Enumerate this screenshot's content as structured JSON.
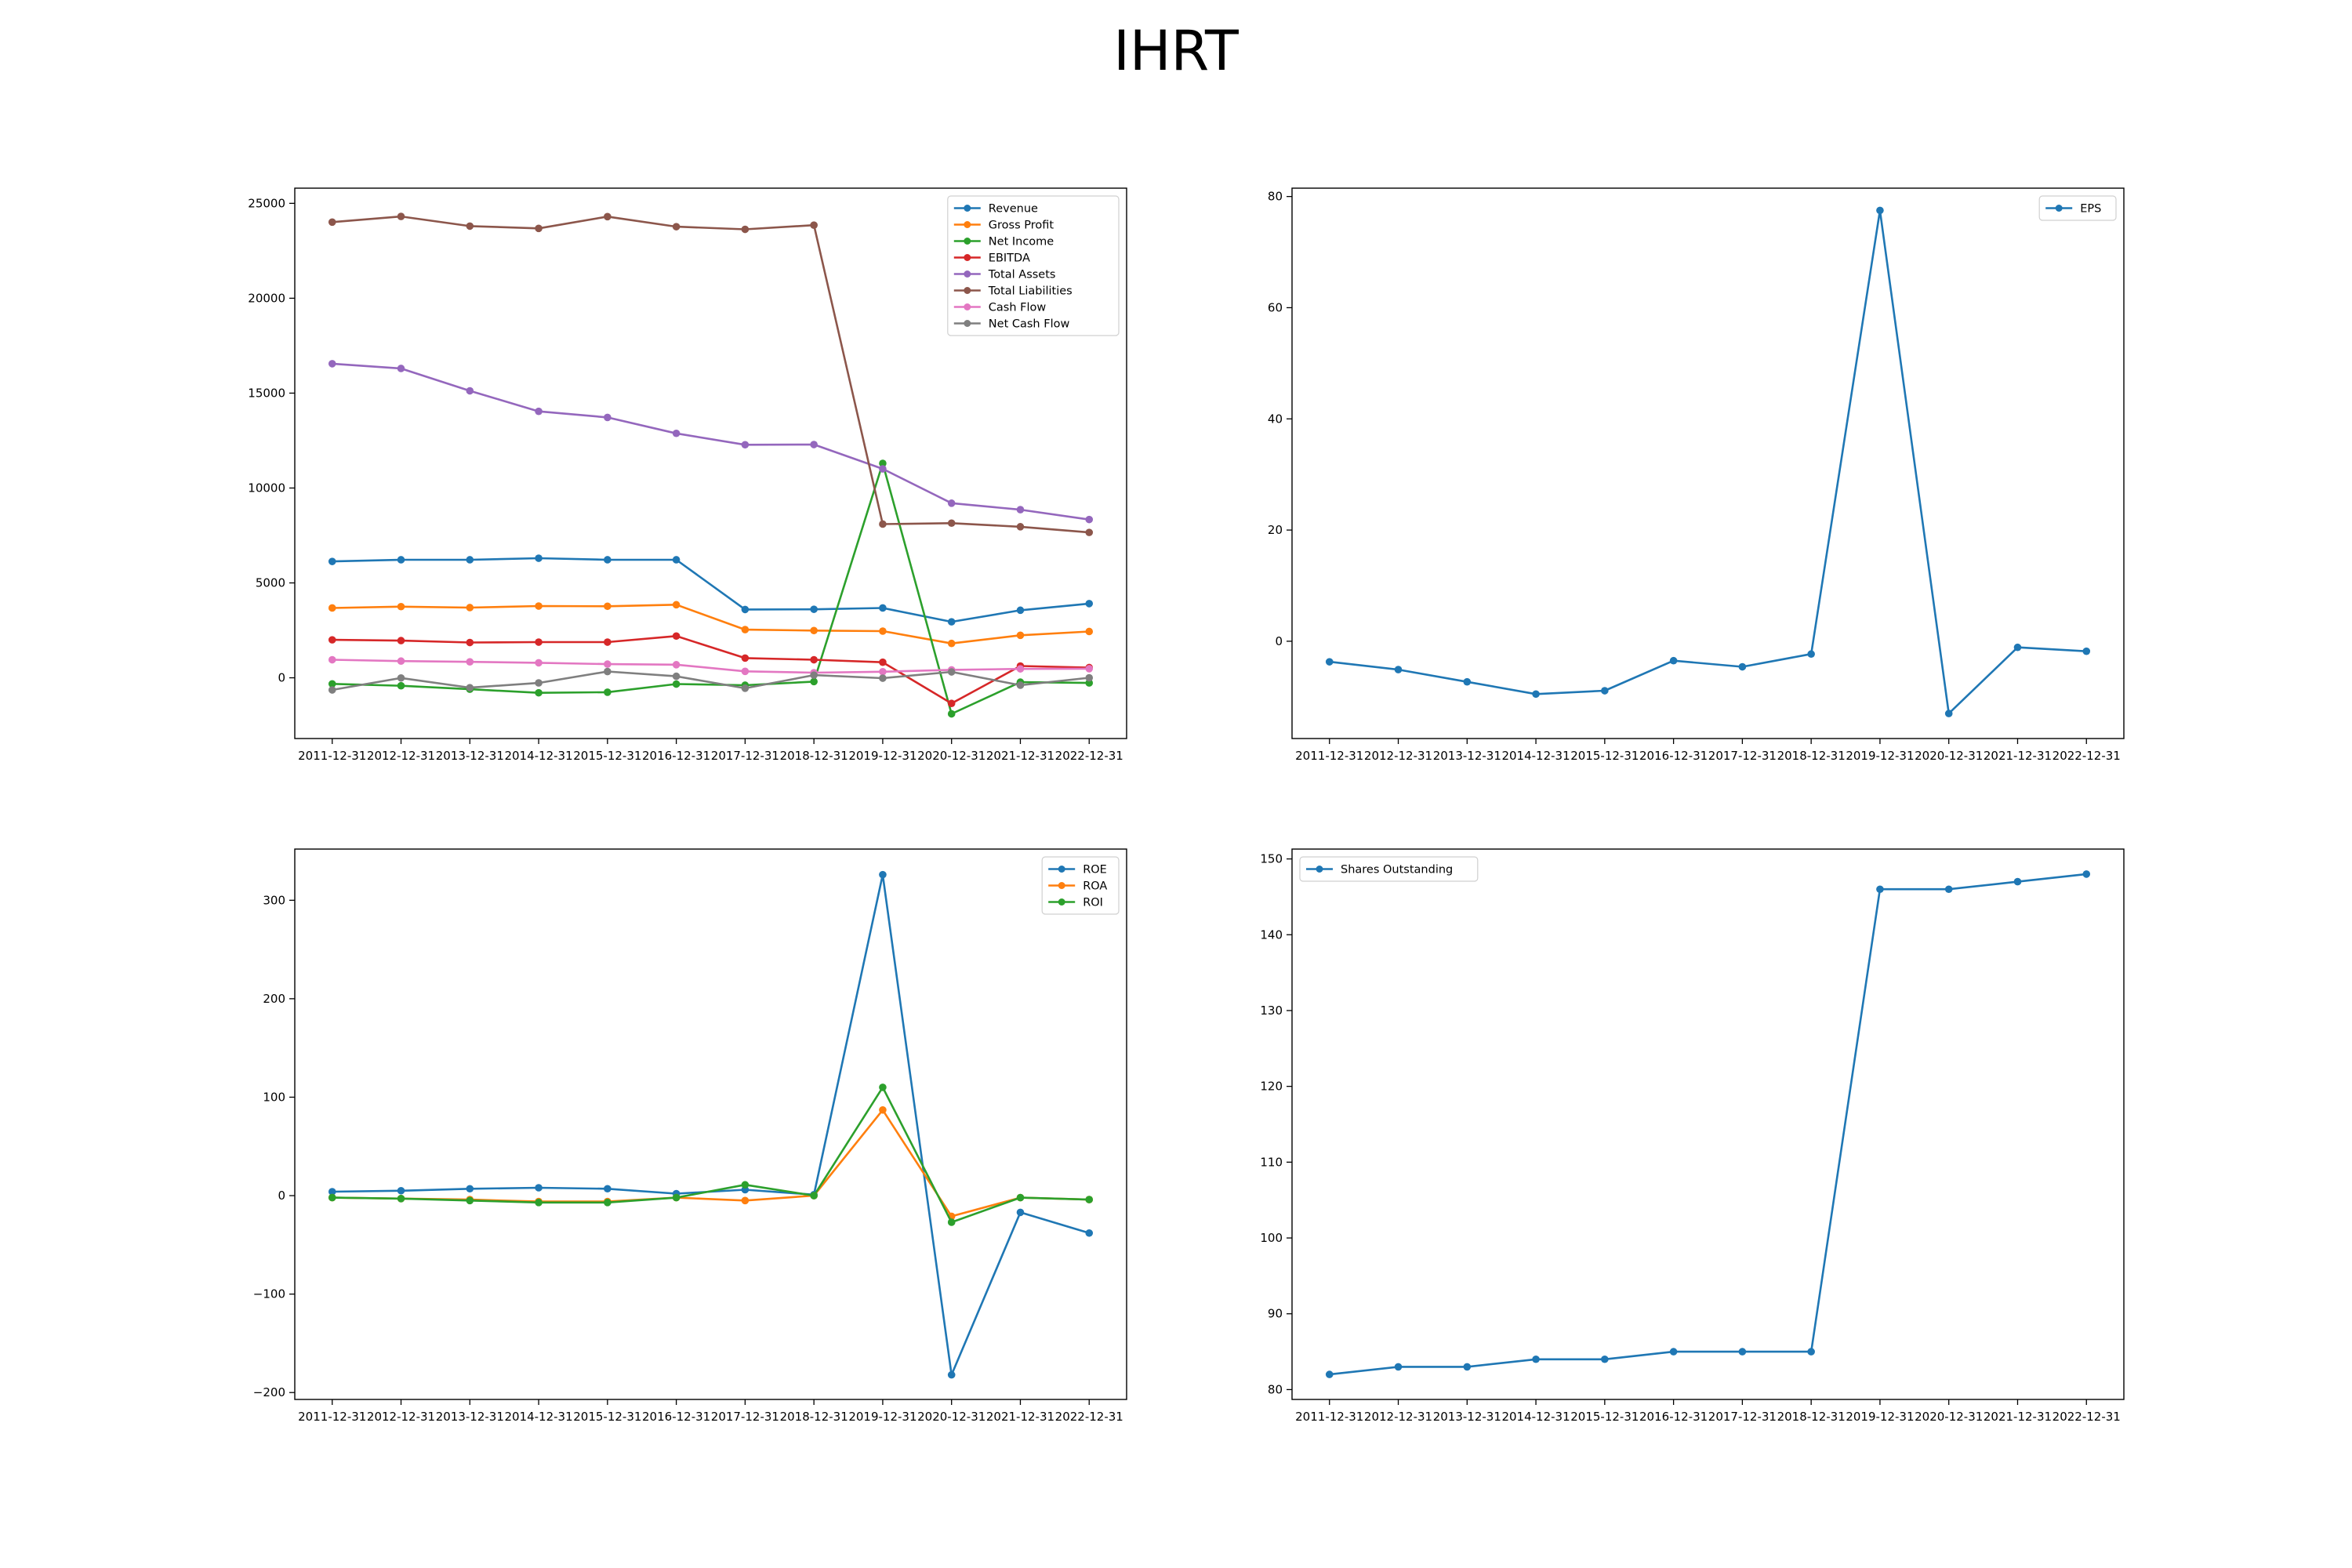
{
  "figure": {
    "title": "IHRT"
  },
  "chart_data": [
    {
      "type": "line",
      "x": [
        "2011-12-31",
        "2012-12-31",
        "2013-12-31",
        "2014-12-31",
        "2015-12-31",
        "2016-12-31",
        "2017-12-31",
        "2018-12-31",
        "2019-12-31",
        "2020-12-31",
        "2021-12-31",
        "2022-12-31"
      ],
      "ylim": [
        -3200,
        25800
      ],
      "yticks": [
        0,
        5000,
        10000,
        15000,
        20000,
        25000
      ],
      "legend": "top-right",
      "grid": false,
      "series": [
        {
          "name": "Revenue",
          "color": "#1f77b4",
          "values": [
            6130,
            6220,
            6220,
            6300,
            6220,
            6220,
            3600,
            3610,
            3680,
            2950,
            3560,
            3910
          ]
        },
        {
          "name": "Gross Profit",
          "color": "#ff7f0e",
          "values": [
            3680,
            3750,
            3700,
            3780,
            3770,
            3850,
            2540,
            2490,
            2460,
            1810,
            2240,
            2440
          ]
        },
        {
          "name": "Net Income",
          "color": "#2ca02c",
          "values": [
            -320,
            -420,
            -600,
            -790,
            -760,
            -330,
            -390,
            -200,
            11300,
            -1900,
            -230,
            -270
          ]
        },
        {
          "name": "EBITDA",
          "color": "#d62728",
          "values": [
            2000,
            1960,
            1860,
            1880,
            1880,
            2200,
            1040,
            950,
            820,
            -1350,
            620,
            540
          ]
        },
        {
          "name": "Total Assets",
          "color": "#9467bd",
          "values": [
            16550,
            16300,
            15120,
            14040,
            13720,
            12880,
            12280,
            12290,
            11010,
            9200,
            8860,
            8340
          ]
        },
        {
          "name": "Total Liabilities",
          "color": "#8c564b",
          "values": [
            24010,
            24310,
            23800,
            23680,
            24300,
            23770,
            23630,
            23850,
            8100,
            8150,
            7960,
            7660
          ]
        },
        {
          "name": "Cash Flow",
          "color": "#e377c2",
          "values": [
            950,
            880,
            840,
            790,
            720,
            690,
            340,
            270,
            320,
            420,
            470,
            480
          ]
        },
        {
          "name": "Net Cash Flow",
          "color": "#7f7f7f",
          "values": [
            -640,
            -10,
            -520,
            -270,
            330,
            80,
            -550,
            140,
            -20,
            310,
            -390,
            0
          ]
        }
      ]
    },
    {
      "type": "line",
      "x": [
        "2011-12-31",
        "2012-12-31",
        "2013-12-31",
        "2014-12-31",
        "2015-12-31",
        "2016-12-31",
        "2017-12-31",
        "2018-12-31",
        "2019-12-31",
        "2020-12-31",
        "2021-12-31",
        "2022-12-31"
      ],
      "ylim": [
        -17.5,
        81.5
      ],
      "yticks": [
        0,
        20,
        40,
        60,
        80
      ],
      "legend": "top-right",
      "grid": false,
      "series": [
        {
          "name": "EPS",
          "color": "#1f77b4",
          "values": [
            -3.7,
            -5.1,
            -7.3,
            -9.5,
            -8.9,
            -3.5,
            -4.6,
            -2.3,
            77.5,
            -13.0,
            -1.1,
            -1.8
          ]
        }
      ]
    },
    {
      "type": "line",
      "x": [
        "2011-12-31",
        "2012-12-31",
        "2013-12-31",
        "2014-12-31",
        "2015-12-31",
        "2016-12-31",
        "2017-12-31",
        "2018-12-31",
        "2019-12-31",
        "2020-12-31",
        "2021-12-31",
        "2022-12-31"
      ],
      "ylim": [
        -207,
        352
      ],
      "yticks": [
        -200,
        -100,
        0,
        100,
        200,
        300
      ],
      "legend": "top-right",
      "grid": false,
      "series": [
        {
          "name": "ROE",
          "color": "#1f77b4",
          "values": [
            4,
            5,
            7,
            8,
            7,
            2,
            6,
            1,
            326,
            -182,
            -17,
            -38
          ]
        },
        {
          "name": "ROA",
          "color": "#ff7f0e",
          "values": [
            -2,
            -3,
            -4,
            -6,
            -6,
            -2,
            -5,
            0,
            87,
            -21,
            -2,
            -4
          ]
        },
        {
          "name": "ROI",
          "color": "#2ca02c",
          "values": [
            -2,
            -3,
            -5,
            -7,
            -7,
            -2,
            11,
            0,
            110,
            -27,
            -2,
            -4
          ]
        }
      ]
    },
    {
      "type": "line",
      "x": [
        "2011-12-31",
        "2012-12-31",
        "2013-12-31",
        "2014-12-31",
        "2015-12-31",
        "2016-12-31",
        "2017-12-31",
        "2018-12-31",
        "2019-12-31",
        "2020-12-31",
        "2021-12-31",
        "2022-12-31"
      ],
      "ylim": [
        78.7,
        151.3
      ],
      "yticks": [
        80,
        90,
        100,
        110,
        120,
        130,
        140,
        150
      ],
      "legend": "top-left",
      "grid": false,
      "series": [
        {
          "name": "Shares Outstanding",
          "color": "#1f77b4",
          "values": [
            82,
            83,
            83,
            84,
            84,
            85,
            85,
            85,
            146,
            146,
            147,
            148
          ]
        }
      ]
    }
  ]
}
